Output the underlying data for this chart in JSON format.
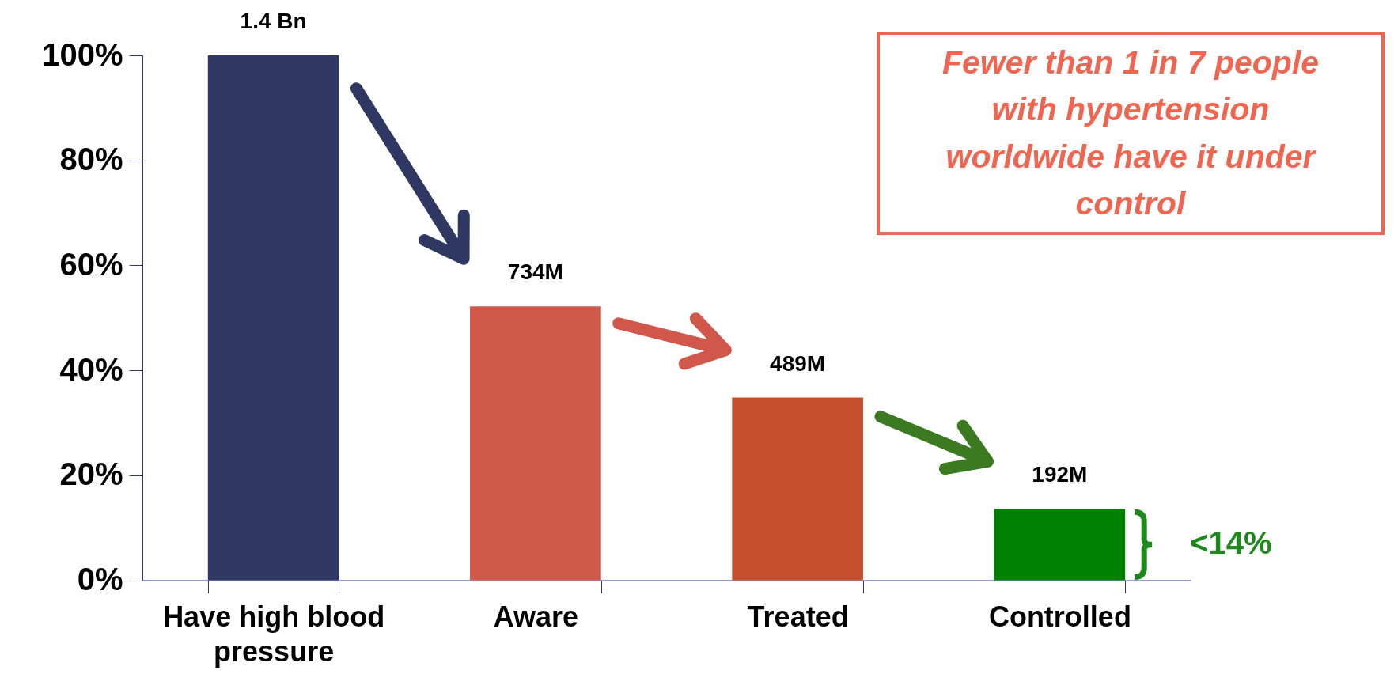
{
  "chart_data": {
    "type": "bar",
    "categories": [
      "Have high blood pressure",
      "Aware",
      "Treated",
      "Controlled"
    ],
    "values": [
      100,
      52.2,
      34.8,
      13.6
    ],
    "colors": [
      "#2e3862",
      "#cf5a4a",
      "#c34f2d",
      "#008000"
    ],
    "ylim": [
      0,
      100
    ],
    "yticks": [
      {
        "value": 0,
        "label": "0%"
      },
      {
        "value": 20,
        "label": "20%"
      },
      {
        "value": 40,
        "label": "40%"
      },
      {
        "value": 60,
        "label": "60%"
      },
      {
        "value": 80,
        "label": "80%"
      },
      {
        "value": 100,
        "label": "100%"
      }
    ],
    "annotations": [
      "Fewer than 1 in 7 people with hypertension worldwide have it under control",
      "<14%",
      {
        "text": "1.4 Bn",
        "x": "Have high blood pressure",
        "y": 100
      },
      {
        "text": "734M",
        "x": "Aware",
        "y": 52.2
      },
      {
        "text": "489M",
        "x": "Treated",
        "y": 34.8
      },
      {
        "text": "192M",
        "x": "Controlled",
        "y": 13.6
      }
    ],
    "grid": false,
    "legend": false
  }
}
